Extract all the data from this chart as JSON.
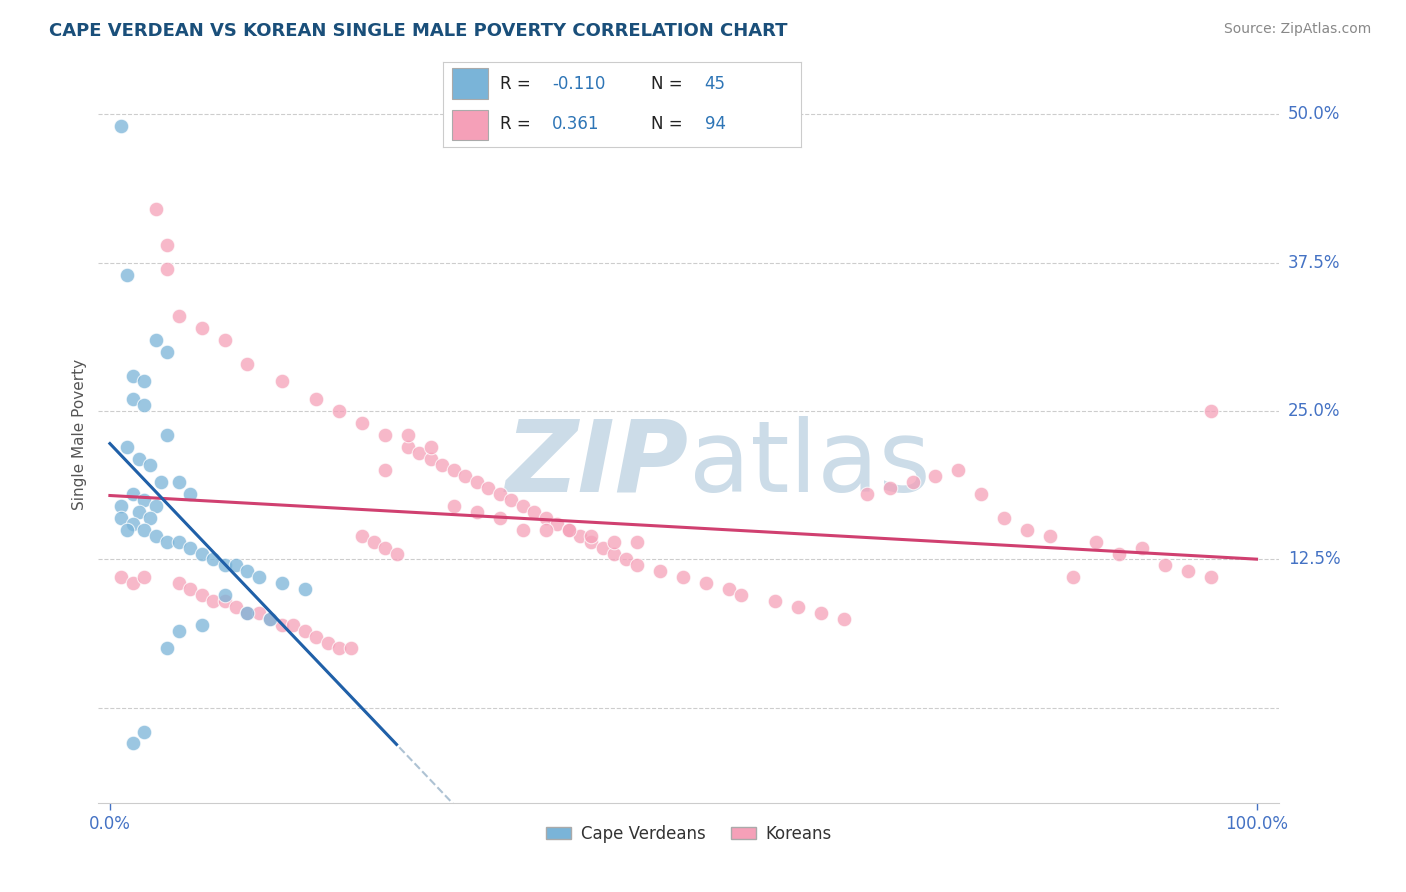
{
  "title": "CAPE VERDEAN VS KOREAN SINGLE MALE POVERTY CORRELATION CHART",
  "source": "Source: ZipAtlas.com",
  "ylabel": "Single Male Poverty",
  "blue_color": "#7ab4d8",
  "pink_color": "#f5a0b8",
  "blue_line_color": "#2060a8",
  "pink_line_color": "#d04070",
  "dash_line_color": "#a0b8cc",
  "legend_blue_label": "Cape Verdeans",
  "legend_pink_label": "Koreans",
  "r_blue": -0.11,
  "n_blue": 45,
  "r_pink": 0.361,
  "n_pink": 94,
  "title_color": "#1a4f7a",
  "source_color": "#888888",
  "ylabel_color": "#555555",
  "tick_color": "#4472c4",
  "watermark_color": "#ccdce8",
  "grid_color": "#c8c8c8",
  "background_color": "#ffffff",
  "xlim": [
    -1,
    102
  ],
  "ylim": [
    -8,
    54
  ],
  "ytick_values": [
    12.5,
    25.0,
    37.5,
    50.0
  ],
  "xtick_values": [
    0.0,
    100.0
  ],
  "legend_r_n_color": "#2e75b6",
  "legend_text_color": "#222222",
  "blue_x": [
    1.0,
    1.5,
    2.0,
    3.0,
    4.0,
    5.0,
    2.0,
    3.0,
    5.0,
    1.5,
    2.5,
    3.5,
    4.5,
    6.0,
    7.0,
    2.0,
    3.0,
    4.0,
    1.0,
    2.5,
    3.5,
    1.0,
    2.0,
    1.5,
    3.0,
    4.0,
    5.0,
    6.0,
    7.0,
    8.0,
    9.0,
    10.0,
    11.0,
    12.0,
    13.0,
    15.0,
    17.0,
    10.0,
    12.0,
    14.0,
    8.0,
    6.0,
    5.0,
    3.0,
    2.0
  ],
  "blue_y": [
    49.0,
    36.5,
    28.0,
    27.5,
    31.0,
    30.0,
    26.0,
    25.5,
    23.0,
    22.0,
    21.0,
    20.5,
    19.0,
    19.0,
    18.0,
    18.0,
    17.5,
    17.0,
    17.0,
    16.5,
    16.0,
    16.0,
    15.5,
    15.0,
    15.0,
    14.5,
    14.0,
    14.0,
    13.5,
    13.0,
    12.5,
    12.0,
    12.0,
    11.5,
    11.0,
    10.5,
    10.0,
    9.5,
    8.0,
    7.5,
    7.0,
    6.5,
    5.0,
    -2.0,
    -3.0
  ],
  "pink_x": [
    1.0,
    2.0,
    4.0,
    5.0,
    3.0,
    6.0,
    7.0,
    8.0,
    9.0,
    10.0,
    11.0,
    12.0,
    13.0,
    14.0,
    15.0,
    16.0,
    17.0,
    18.0,
    19.0,
    20.0,
    21.0,
    22.0,
    23.0,
    24.0,
    25.0,
    26.0,
    27.0,
    28.0,
    29.0,
    30.0,
    31.0,
    32.0,
    33.0,
    34.0,
    35.0,
    36.0,
    37.0,
    38.0,
    39.0,
    40.0,
    41.0,
    42.0,
    43.0,
    44.0,
    45.0,
    46.0,
    48.0,
    50.0,
    52.0,
    54.0,
    55.0,
    58.0,
    60.0,
    62.0,
    64.0,
    66.0,
    68.0,
    70.0,
    72.0,
    74.0,
    76.0,
    78.0,
    80.0,
    82.0,
    84.0,
    86.0,
    88.0,
    90.0,
    92.0,
    94.0,
    96.0,
    5.0,
    6.0,
    8.0,
    10.0,
    12.0,
    15.0,
    18.0,
    20.0,
    22.0,
    24.0,
    26.0,
    28.0,
    30.0,
    32.0,
    34.0,
    36.0,
    38.0,
    40.0,
    42.0,
    44.0,
    46.0,
    24.0,
    96.0
  ],
  "pink_y": [
    11.0,
    10.5,
    42.0,
    39.0,
    11.0,
    10.5,
    10.0,
    9.5,
    9.0,
    9.0,
    8.5,
    8.0,
    8.0,
    7.5,
    7.0,
    7.0,
    6.5,
    6.0,
    5.5,
    5.0,
    5.0,
    14.5,
    14.0,
    13.5,
    13.0,
    22.0,
    21.5,
    21.0,
    20.5,
    20.0,
    19.5,
    19.0,
    18.5,
    18.0,
    17.5,
    17.0,
    16.5,
    16.0,
    15.5,
    15.0,
    14.5,
    14.0,
    13.5,
    13.0,
    12.5,
    12.0,
    11.5,
    11.0,
    10.5,
    10.0,
    9.5,
    9.0,
    8.5,
    8.0,
    7.5,
    18.0,
    18.5,
    19.0,
    19.5,
    20.0,
    18.0,
    16.0,
    15.0,
    14.5,
    11.0,
    14.0,
    13.0,
    13.5,
    12.0,
    11.5,
    11.0,
    37.0,
    33.0,
    32.0,
    31.0,
    29.0,
    27.5,
    26.0,
    25.0,
    24.0,
    23.0,
    23.0,
    22.0,
    17.0,
    16.5,
    16.0,
    15.0,
    15.0,
    15.0,
    14.5,
    14.0,
    14.0,
    20.0,
    25.0
  ]
}
